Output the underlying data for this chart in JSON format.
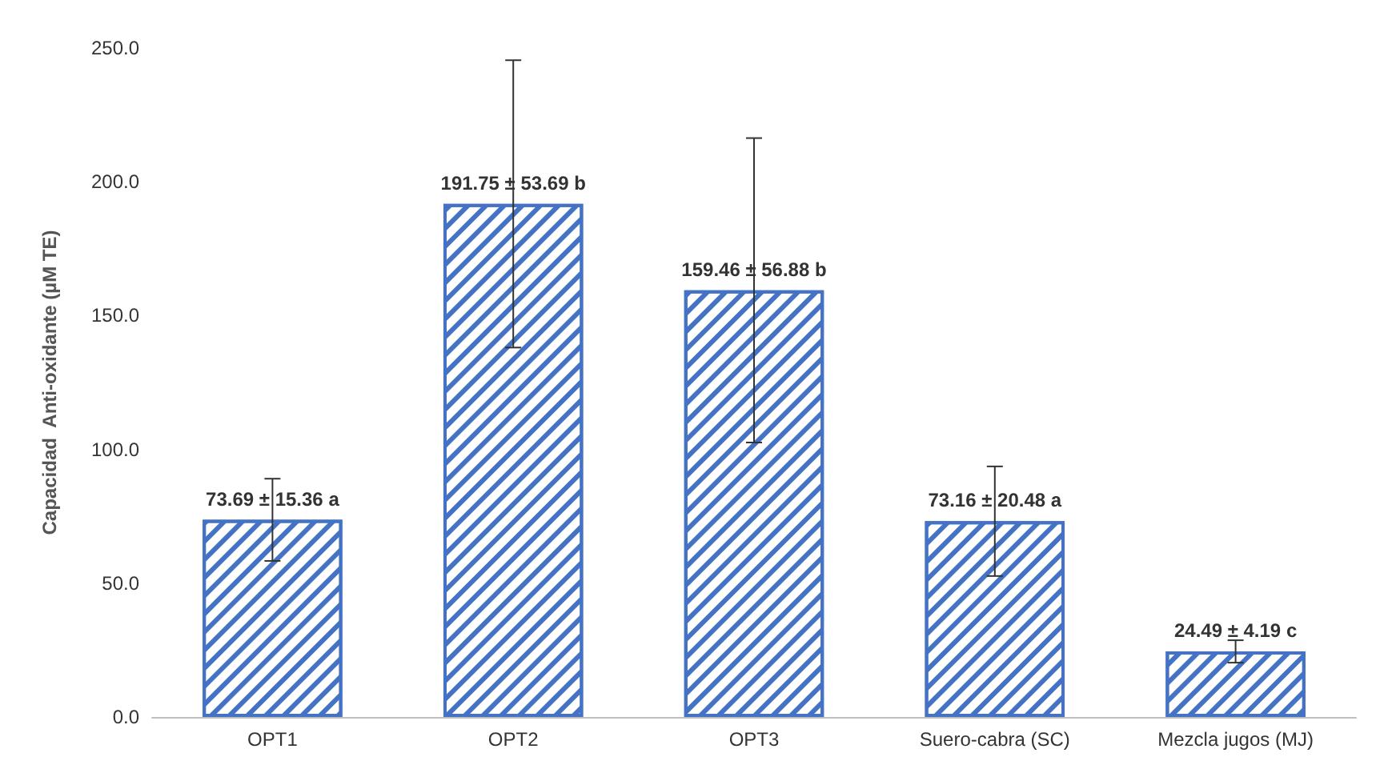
{
  "chart_data": {
    "type": "bar",
    "ylabel": "Capacidad  Anti-oxidante (µM TE)",
    "categories": [
      "OPT1",
      "OPT2",
      "OPT3",
      "Suero-cabra (SC)",
      "Mezcla jugos (MJ)"
    ],
    "values": [
      73.69,
      191.75,
      159.46,
      73.16,
      24.49
    ],
    "errors": [
      15.36,
      53.69,
      56.88,
      20.48,
      4.19
    ],
    "value_labels": [
      "73.69 ± 15.36 a",
      "191.75 ± 53.69 b",
      "159.46 ± 56.88 b",
      "73.16 ± 20.48 a",
      "24.49 ± 4.19 c"
    ],
    "color": "#4472c4",
    "ylim": [
      0,
      250
    ],
    "yticks": [
      {
        "value": 0,
        "label": "0.0"
      },
      {
        "value": 50,
        "label": "50.0"
      },
      {
        "value": 100,
        "label": "100.0"
      },
      {
        "value": 150,
        "label": "150.0"
      },
      {
        "value": 200,
        "label": "200.0"
      },
      {
        "value": 250,
        "label": "250.0"
      }
    ],
    "grid": false
  }
}
